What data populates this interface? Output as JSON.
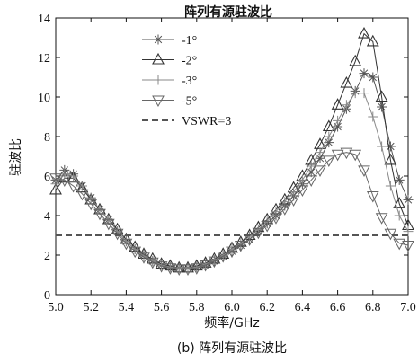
{
  "chart_data": {
    "type": "line",
    "title": "阵列有源驻波比",
    "caption": "(b) 阵列有源驻波比",
    "xlabel": "频率/GHz",
    "ylabel": "驻波比",
    "xlim": [
      5.0,
      7.0
    ],
    "ylim": [
      0,
      14
    ],
    "xticks": [
      "5.0",
      "5.2",
      "5.4",
      "5.6",
      "5.8",
      "6.0",
      "6.2",
      "6.4",
      "6.6",
      "6.8",
      "7.0"
    ],
    "yticks": [
      "0",
      "2",
      "4",
      "6",
      "8",
      "10",
      "12",
      "14"
    ],
    "grid": false,
    "legend_position": "top-center",
    "series": [
      {
        "name": "-1°",
        "marker": "asterisk",
        "color": "#555555",
        "x": [
          5.0,
          5.05,
          5.1,
          5.15,
          5.2,
          5.25,
          5.3,
          5.35,
          5.4,
          5.45,
          5.5,
          5.55,
          5.6,
          5.65,
          5.7,
          5.75,
          5.8,
          5.85,
          5.9,
          5.95,
          6.0,
          6.05,
          6.1,
          6.15,
          6.2,
          6.25,
          6.3,
          6.35,
          6.4,
          6.45,
          6.5,
          6.55,
          6.6,
          6.65,
          6.7,
          6.75,
          6.8,
          6.85,
          6.9,
          6.95,
          7.0
        ],
        "y": [
          5.8,
          6.3,
          6.1,
          5.5,
          4.9,
          4.3,
          3.8,
          3.2,
          2.7,
          2.3,
          2.0,
          1.7,
          1.5,
          1.4,
          1.35,
          1.35,
          1.4,
          1.5,
          1.7,
          1.95,
          2.2,
          2.5,
          2.8,
          3.2,
          3.6,
          4.0,
          4.5,
          5.0,
          5.6,
          6.2,
          6.9,
          7.7,
          8.5,
          9.4,
          10.3,
          11.2,
          11.0,
          9.5,
          7.5,
          5.8,
          4.8
        ]
      },
      {
        "name": "-2°",
        "marker": "triangle-up",
        "color": "#333333",
        "x": [
          5.0,
          5.05,
          5.1,
          5.15,
          5.2,
          5.25,
          5.3,
          5.35,
          5.4,
          5.45,
          5.5,
          5.55,
          5.6,
          5.65,
          5.7,
          5.75,
          5.8,
          5.85,
          5.9,
          5.95,
          6.0,
          6.05,
          6.1,
          6.15,
          6.2,
          6.25,
          6.3,
          6.35,
          6.4,
          6.45,
          6.5,
          6.55,
          6.6,
          6.65,
          6.7,
          6.75,
          6.8,
          6.85,
          6.9,
          6.95,
          7.0
        ],
        "y": [
          5.3,
          5.9,
          5.9,
          5.4,
          4.8,
          4.3,
          3.8,
          3.3,
          2.8,
          2.4,
          2.05,
          1.8,
          1.55,
          1.45,
          1.35,
          1.35,
          1.45,
          1.6,
          1.8,
          2.05,
          2.35,
          2.65,
          3.0,
          3.4,
          3.8,
          4.3,
          4.8,
          5.4,
          6.0,
          6.8,
          7.6,
          8.5,
          9.6,
          10.7,
          11.8,
          13.2,
          12.8,
          10.0,
          6.8,
          4.6,
          3.5
        ]
      },
      {
        "name": "-3°",
        "marker": "plus",
        "color": "#888888",
        "x": [
          5.0,
          5.05,
          5.1,
          5.15,
          5.2,
          5.25,
          5.3,
          5.35,
          5.4,
          5.45,
          5.5,
          5.55,
          5.6,
          5.65,
          5.7,
          5.75,
          5.8,
          5.85,
          5.9,
          5.95,
          6.0,
          6.05,
          6.1,
          6.15,
          6.2,
          6.25,
          6.3,
          6.35,
          6.4,
          6.45,
          6.5,
          6.55,
          6.6,
          6.65,
          6.7,
          6.75,
          6.8,
          6.85,
          6.9,
          6.95,
          7.0
        ],
        "y": [
          5.6,
          6.1,
          6.0,
          5.5,
          4.9,
          4.3,
          3.8,
          3.2,
          2.7,
          2.3,
          1.95,
          1.7,
          1.5,
          1.4,
          1.35,
          1.35,
          1.4,
          1.55,
          1.75,
          2.0,
          2.3,
          2.6,
          2.95,
          3.3,
          3.7,
          4.2,
          4.7,
          5.2,
          5.8,
          6.5,
          7.2,
          8.0,
          8.8,
          9.6,
          10.2,
          10.2,
          9.0,
          7.5,
          5.5,
          4.0,
          3.2
        ]
      },
      {
        "name": "-5°",
        "marker": "triangle-down",
        "color": "#666666",
        "x": [
          5.0,
          5.05,
          5.1,
          5.15,
          5.2,
          5.25,
          5.3,
          5.35,
          5.4,
          5.45,
          5.5,
          5.55,
          5.6,
          5.65,
          5.7,
          5.75,
          5.8,
          5.85,
          5.9,
          5.95,
          6.0,
          6.05,
          6.1,
          6.15,
          6.2,
          6.25,
          6.3,
          6.35,
          6.4,
          6.45,
          6.5,
          6.55,
          6.6,
          6.65,
          6.7,
          6.75,
          6.8,
          6.85,
          6.9,
          6.95,
          7.0
        ],
        "y": [
          5.9,
          5.8,
          5.5,
          5.1,
          4.6,
          4.1,
          3.6,
          3.1,
          2.6,
          2.2,
          1.9,
          1.65,
          1.45,
          1.35,
          1.3,
          1.3,
          1.35,
          1.5,
          1.7,
          1.95,
          2.2,
          2.5,
          2.8,
          3.15,
          3.5,
          3.9,
          4.35,
          4.8,
          5.3,
          5.8,
          6.3,
          6.8,
          7.1,
          7.2,
          7.1,
          6.3,
          5.0,
          3.9,
          3.1,
          2.6,
          2.5
        ]
      },
      {
        "name": "VSWR=3",
        "marker": "none",
        "dashed": true,
        "color": "#555555",
        "x": [
          5.0,
          7.0
        ],
        "y": [
          3,
          3
        ]
      }
    ]
  }
}
